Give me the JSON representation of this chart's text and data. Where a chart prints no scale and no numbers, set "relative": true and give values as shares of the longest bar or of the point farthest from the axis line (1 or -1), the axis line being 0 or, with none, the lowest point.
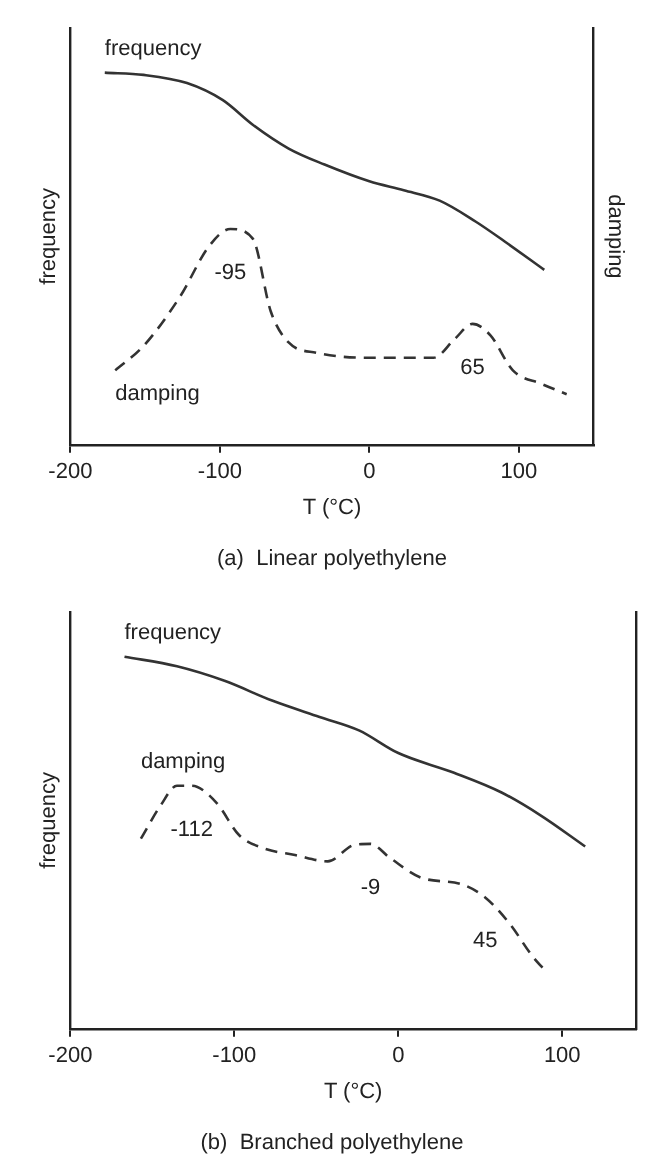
{
  "chart_data": [
    {
      "type": "line",
      "title": "(a)  Linear polyethylene",
      "xlabel": "T (°C)",
      "ylabel": "frequency",
      "y2label": "damping",
      "relative": true,
      "marker": "none",
      "xlim": [
        -200,
        150
      ],
      "xticks": [
        -200,
        -100,
        0,
        100
      ],
      "series": [
        {
          "name": "frequency",
          "color": "#333333",
          "line_style": "solid",
          "x": [
            -177,
            -151,
            -122,
            -98,
            -78,
            -54,
            -30,
            0,
            23,
            47,
            71,
            91,
            117
          ],
          "values": [
            1.0,
            0.994,
            0.972,
            0.926,
            0.86,
            0.796,
            0.753,
            0.708,
            0.684,
            0.656,
            0.6,
            0.545,
            0.47
          ]
        },
        {
          "name": "damping",
          "color": "#333333",
          "line_style": "dashed",
          "x": [
            -170,
            -151,
            -127,
            -107,
            -93,
            -78,
            -66,
            -54,
            -35,
            0,
            43,
            57,
            69,
            81,
            96,
            115,
            132
          ],
          "values": [
            0.2,
            0.266,
            0.396,
            0.535,
            0.58,
            0.554,
            0.359,
            0.275,
            0.247,
            0.234,
            0.234,
            0.284,
            0.325,
            0.294,
            0.2,
            0.164,
            0.136
          ]
        }
      ],
      "annotations": [
        {
          "text": "-95",
          "x": -93,
          "y": 0.58
        },
        {
          "text": "65",
          "x": 69,
          "y": 0.325
        }
      ]
    },
    {
      "type": "line",
      "title": "(b)  Branched polyethylene",
      "xlabel": "T (°C)",
      "ylabel": "frequency",
      "relative": true,
      "marker": "none",
      "xlim": [
        -200,
        145
      ],
      "xticks": [
        -200,
        -100,
        0,
        100
      ],
      "series": [
        {
          "name": "frequency",
          "color": "#333333",
          "line_style": "solid",
          "x": [
            -167,
            -135,
            -106,
            -77,
            -48,
            -24,
            0,
            34,
            63,
            87,
            114
          ],
          "values": [
            1.0,
            0.974,
            0.935,
            0.882,
            0.838,
            0.802,
            0.741,
            0.688,
            0.635,
            0.573,
            0.49
          ]
        },
        {
          "name": "damping",
          "color": "#333333",
          "line_style": "dashed",
          "x": [
            -157,
            -145,
            -135,
            -126,
            -111,
            -97,
            -82,
            -63,
            -43,
            -27,
            -17,
            -5,
            14,
            39,
            53,
            68,
            82,
            89
          ],
          "values": [
            0.511,
            0.6,
            0.653,
            0.653,
            0.608,
            0.52,
            0.485,
            0.467,
            0.45,
            0.494,
            0.497,
            0.459,
            0.406,
            0.388,
            0.353,
            0.282,
            0.194,
            0.159
          ]
        }
      ],
      "annotations": [
        {
          "text": "-112",
          "x": -126,
          "y": 0.653
        },
        {
          "text": "-9",
          "x": -17,
          "y": 0.497
        },
        {
          "text": "45",
          "x": 53,
          "y": 0.353
        }
      ]
    }
  ]
}
